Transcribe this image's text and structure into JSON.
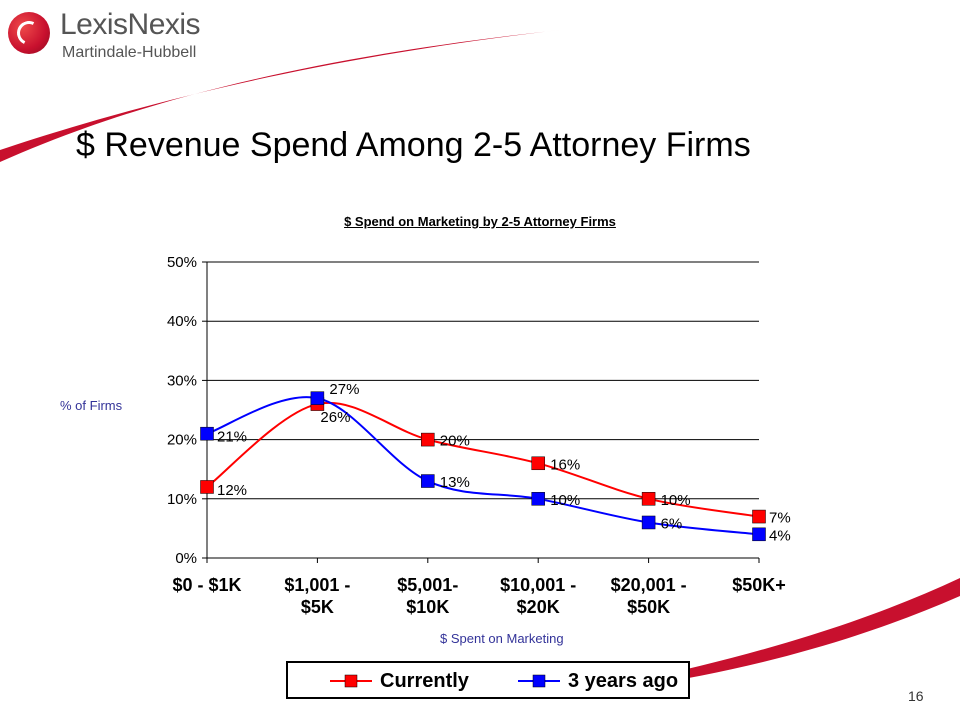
{
  "logo": {
    "name": "LexisNexis",
    "sub": "Martindale-Hubbell"
  },
  "slide": {
    "title": "$ Revenue Spend Among 2-5 Attorney Firms",
    "page_number": "16"
  },
  "colors": {
    "currently": "#ff0000",
    "three_years_ago": "#0000ff",
    "brand_red": "#c8102e"
  },
  "chart_data": {
    "type": "line",
    "title": "$ Spend on Marketing by 2-5 Attorney Firms",
    "xlabel": "$ Spent on Marketing",
    "ylabel": "% of Firms",
    "categories": [
      [
        "$0 - $1K"
      ],
      [
        "$1,001 -",
        "$5K"
      ],
      [
        "$5,001-",
        "$10K"
      ],
      [
        "$10,001 -",
        "$20K"
      ],
      [
        "$20,001 -",
        "$50K"
      ],
      [
        "$50K+"
      ]
    ],
    "ylim": [
      0,
      50
    ],
    "yticks": [
      0,
      10,
      20,
      30,
      40,
      50
    ],
    "ytick_labels": [
      "0%",
      "10%",
      "20%",
      "30%",
      "40%",
      "50%"
    ],
    "grid": true,
    "legend_position": "bottom",
    "series": [
      {
        "name": "Currently",
        "color": "#ff0000",
        "values": [
          12,
          26,
          20,
          16,
          10,
          7
        ],
        "labels": [
          "12%",
          "26%",
          "20%",
          "16%",
          "10%",
          "7%"
        ]
      },
      {
        "name": "3 years ago",
        "color": "#0000ff",
        "values": [
          21,
          27,
          13,
          10,
          6,
          4
        ],
        "labels": [
          "21%",
          "27%",
          "13%",
          "10%",
          "6%",
          "4%"
        ]
      }
    ]
  }
}
